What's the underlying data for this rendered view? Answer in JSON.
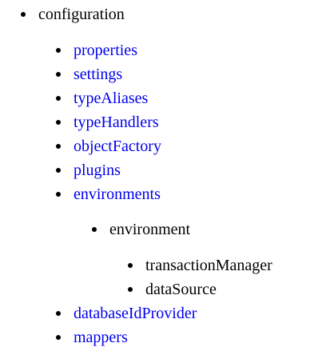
{
  "tree": {
    "root": {
      "label": "configuration"
    },
    "children": [
      {
        "label": "properties",
        "link": true
      },
      {
        "label": "settings",
        "link": true
      },
      {
        "label": "typeAliases",
        "link": true
      },
      {
        "label": "typeHandlers",
        "link": true
      },
      {
        "label": "objectFactory",
        "link": true
      },
      {
        "label": "plugins",
        "link": true
      },
      {
        "label": "environments",
        "link": true
      },
      {
        "label": "databaseIdProvider",
        "link": true
      },
      {
        "label": "mappers",
        "link": true
      }
    ],
    "environment": {
      "label": "environment"
    },
    "environment_children": [
      {
        "label": "transactionManager"
      },
      {
        "label": "dataSource"
      }
    ]
  },
  "colors": {
    "link": "#0000ee",
    "text": "#000000",
    "background": "#ffffff"
  }
}
